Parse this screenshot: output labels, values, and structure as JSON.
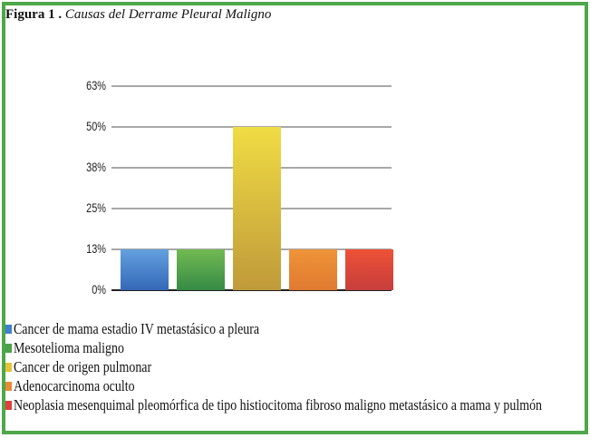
{
  "caption": {
    "label": "Figura 1 .",
    "title": "Causas   del Derrame Pleural Maligno"
  },
  "chart_data": {
    "type": "bar",
    "title": "Causas del Derrame Pleural Maligno",
    "categories": [
      "Cancer de mama estadio IV metastásico a pleura",
      "Mesotelioma maligno",
      "Cancer de origen pulmonar",
      "Adenocarcinoma oculto",
      "Neoplasia mesenquimal pleomórfica de tipo histiocitoma fibroso maligno metastásico a mama y pulmón"
    ],
    "values": [
      12.5,
      12.5,
      50,
      12.5,
      12.5
    ],
    "colors": [
      "#4a86c8",
      "#4a9e4a",
      "#d9b838",
      "#e88a32",
      "#e04a3a"
    ],
    "xlabel": "",
    "ylabel": "",
    "ylim": [
      0,
      62.5
    ],
    "yticks": [
      "0%",
      "13%",
      "25%",
      "38%",
      "50%",
      "63%"
    ],
    "grid": true,
    "legend_position": "bottom"
  },
  "legend": [
    {
      "label": "Cancer de mama estadio IV metastásico a pleura",
      "color": "#3f7fd0"
    },
    {
      "label": "Mesotelioma maligno",
      "color": "#4aa24a"
    },
    {
      "label": "Cancer de origen pulmonar",
      "color": "#e6c43a"
    },
    {
      "label": "Adenocarcinoma oculto",
      "color": "#ea8a34"
    },
    {
      "label": "Neoplasia mesenquimal pleomórfica de tipo histiocitoma fibroso maligno metastásico a mama y pulmón",
      "color": "#e0403a"
    }
  ]
}
